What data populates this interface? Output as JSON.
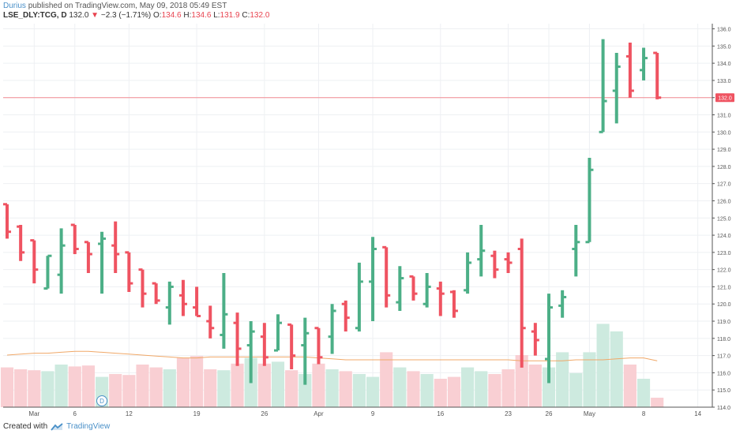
{
  "header": {
    "author": "Durius",
    "published_text": "published on TradingView.com, May 09, 2018 05:49 EST",
    "symbol": "LSE_DLY:TCG, D",
    "last": "132.0",
    "change": "−2.3 (−1.71%)",
    "o_label": "O:",
    "o_value": "134.6",
    "h_label": "H:",
    "h_value": "134.6",
    "l_label": "L:",
    "l_value": "131.9",
    "c_label": "C:",
    "c_value": "132.0"
  },
  "footer": {
    "created_with": "Created with",
    "brand": "TradingView"
  },
  "colors": {
    "up": "#4caf87",
    "down": "#ef5361",
    "vol_up": "#cdeadf",
    "vol_down": "#f9cfd3",
    "ma": "#f0a868",
    "price_line": "#f28b93",
    "grid": "#eef0f3",
    "axis_text": "#555555",
    "price_label_bg": "#ef5361"
  },
  "chart_data": {
    "type": "ohlc",
    "ylim": [
      114,
      136.3
    ],
    "y_ticks": [
      "114.0",
      "115.0",
      "116.0",
      "117.0",
      "118.0",
      "119.0",
      "120.0",
      "121.0",
      "122.0",
      "123.0",
      "124.0",
      "125.0",
      "126.0",
      "127.0",
      "128.0",
      "129.0",
      "130.0",
      "131.0",
      "132.0",
      "133.0",
      "134.0",
      "135.0",
      "136.0"
    ],
    "x_ticks": [
      {
        "label": "Mar",
        "index": 2
      },
      {
        "label": "6",
        "index": 5
      },
      {
        "label": "12",
        "index": 9
      },
      {
        "label": "19",
        "index": 14
      },
      {
        "label": "26",
        "index": 19
      },
      {
        "label": "Apr",
        "index": 23
      },
      {
        "label": "9",
        "index": 27
      },
      {
        "label": "16",
        "index": 32
      },
      {
        "label": "23",
        "index": 37
      },
      {
        "label": "26",
        "index": 40
      },
      {
        "label": "May",
        "index": 43
      },
      {
        "label": "8",
        "index": 47
      },
      {
        "label": "14",
        "index": 51
      }
    ],
    "last_price": 132.0,
    "last_price_label": "132.0",
    "bars": [
      {
        "o": 125.8,
        "h": 125.8,
        "l": 123.8,
        "c": 124.2,
        "v": 0.42
      },
      {
        "o": 124.5,
        "h": 124.6,
        "l": 122.5,
        "c": 123.0,
        "v": 0.4
      },
      {
        "o": 123.7,
        "h": 123.7,
        "l": 121.2,
        "c": 122.0,
        "v": 0.39
      },
      {
        "o": 120.9,
        "h": 122.8,
        "l": 120.9,
        "c": 122.8,
        "v": 0.38
      },
      {
        "o": 121.7,
        "h": 124.4,
        "l": 120.6,
        "c": 123.4,
        "v": 0.45
      },
      {
        "o": 124.6,
        "h": 124.6,
        "l": 122.9,
        "c": 123.2,
        "v": 0.43
      },
      {
        "o": 123.6,
        "h": 123.6,
        "l": 121.8,
        "c": 122.9,
        "v": 0.44
      },
      {
        "o": 123.5,
        "h": 124.2,
        "l": 120.6,
        "c": 123.8,
        "v": 0.32
      },
      {
        "o": 123.4,
        "h": 124.8,
        "l": 121.8,
        "c": 122.9,
        "v": 0.35
      },
      {
        "o": 123.0,
        "h": 123.0,
        "l": 120.7,
        "c": 121.2,
        "v": 0.34
      },
      {
        "o": 122.0,
        "h": 122.0,
        "l": 119.8,
        "c": 120.6,
        "v": 0.45
      },
      {
        "o": 121.2,
        "h": 121.2,
        "l": 120.0,
        "c": 120.2,
        "v": 0.42
      },
      {
        "o": 119.8,
        "h": 121.3,
        "l": 118.8,
        "c": 121.0,
        "v": 0.4
      },
      {
        "o": 120.5,
        "h": 121.4,
        "l": 119.3,
        "c": 120.0,
        "v": 0.52
      },
      {
        "o": 119.8,
        "h": 121.0,
        "l": 119.3,
        "c": 119.3,
        "v": 0.54
      },
      {
        "o": 119.0,
        "h": 119.9,
        "l": 118.0,
        "c": 118.6,
        "v": 0.4
      },
      {
        "o": 118.2,
        "h": 121.8,
        "l": 117.4,
        "c": 119.4,
        "v": 0.39
      },
      {
        "o": 118.9,
        "h": 119.5,
        "l": 116.4,
        "c": 117.4,
        "v": 0.46
      },
      {
        "o": 117.6,
        "h": 119.0,
        "l": 115.4,
        "c": 118.4,
        "v": 0.52
      },
      {
        "o": 118.1,
        "h": 118.9,
        "l": 116.4,
        "c": 116.9,
        "v": 0.46
      },
      {
        "o": 117.3,
        "h": 119.4,
        "l": 117.3,
        "c": 118.9,
        "v": 0.48
      },
      {
        "o": 118.8,
        "h": 118.8,
        "l": 116.2,
        "c": 117.0,
        "v": 0.39
      },
      {
        "o": 117.6,
        "h": 119.2,
        "l": 115.3,
        "c": 118.3,
        "v": 0.35
      },
      {
        "o": 118.6,
        "h": 118.6,
        "l": 116.5,
        "c": 116.9,
        "v": 0.46
      },
      {
        "o": 118.1,
        "h": 120.0,
        "l": 117.1,
        "c": 119.6,
        "v": 0.4
      },
      {
        "o": 120.0,
        "h": 120.2,
        "l": 118.4,
        "c": 119.2,
        "v": 0.38
      },
      {
        "o": 118.6,
        "h": 122.4,
        "l": 118.4,
        "c": 121.3,
        "v": 0.35
      },
      {
        "o": 121.3,
        "h": 123.9,
        "l": 119.0,
        "c": 123.2,
        "v": 0.32
      },
      {
        "o": 123.3,
        "h": 123.3,
        "l": 119.8,
        "c": 120.5,
        "v": 0.58
      },
      {
        "o": 120.1,
        "h": 122.2,
        "l": 119.6,
        "c": 121.5,
        "v": 0.42
      },
      {
        "o": 121.6,
        "h": 121.6,
        "l": 120.2,
        "c": 120.6,
        "v": 0.38
      },
      {
        "o": 120.0,
        "h": 121.8,
        "l": 119.8,
        "c": 121.0,
        "v": 0.35
      },
      {
        "o": 120.9,
        "h": 121.3,
        "l": 119.3,
        "c": 120.6,
        "v": 0.3
      },
      {
        "o": 120.7,
        "h": 120.8,
        "l": 119.2,
        "c": 119.6,
        "v": 0.32
      },
      {
        "o": 120.8,
        "h": 123.0,
        "l": 120.6,
        "c": 122.4,
        "v": 0.42
      },
      {
        "o": 122.6,
        "h": 124.6,
        "l": 121.6,
        "c": 123.1,
        "v": 0.38
      },
      {
        "o": 122.8,
        "h": 123.1,
        "l": 121.5,
        "c": 122.0,
        "v": 0.35
      },
      {
        "o": 122.6,
        "h": 123.0,
        "l": 121.8,
        "c": 122.4,
        "v": 0.4
      },
      {
        "o": 123.2,
        "h": 123.8,
        "l": 116.3,
        "c": 118.6,
        "v": 0.55
      },
      {
        "o": 118.4,
        "h": 118.9,
        "l": 117.0,
        "c": 117.9,
        "v": 0.45
      },
      {
        "o": 116.8,
        "h": 120.6,
        "l": 115.4,
        "c": 119.8,
        "v": 0.42
      },
      {
        "o": 119.9,
        "h": 120.8,
        "l": 119.2,
        "c": 120.4,
        "v": 0.58
      },
      {
        "o": 123.2,
        "h": 124.6,
        "l": 121.6,
        "c": 123.6,
        "v": 0.36
      },
      {
        "o": 123.6,
        "h": 128.5,
        "l": 123.6,
        "c": 127.8,
        "v": 0.58
      },
      {
        "o": 130.0,
        "h": 135.4,
        "l": 130.0,
        "c": 131.8,
        "v": 0.88
      },
      {
        "o": 132.4,
        "h": 134.6,
        "l": 130.5,
        "c": 133.8,
        "v": 0.8
      },
      {
        "o": 134.4,
        "h": 135.2,
        "l": 132.0,
        "c": 132.4,
        "v": 0.45
      },
      {
        "o": 133.6,
        "h": 134.9,
        "l": 133.0,
        "c": 134.3,
        "v": 0.3
      },
      {
        "o": 134.6,
        "h": 134.6,
        "l": 131.9,
        "c": 132.0,
        "v": 0.1
      }
    ],
    "ma": [
      0.55,
      0.56,
      0.57,
      0.57,
      0.58,
      0.59,
      0.59,
      0.58,
      0.57,
      0.56,
      0.55,
      0.54,
      0.53,
      0.52,
      0.52,
      0.53,
      0.53,
      0.53,
      0.53,
      0.53,
      0.53,
      0.53,
      0.53,
      0.52,
      0.51,
      0.5,
      0.5,
      0.5,
      0.5,
      0.5,
      0.5,
      0.5,
      0.5,
      0.5,
      0.5,
      0.5,
      0.5,
      0.5,
      0.49,
      0.49,
      0.49,
      0.49,
      0.5,
      0.5,
      0.5,
      0.51,
      0.52,
      0.52,
      0.49
    ]
  }
}
